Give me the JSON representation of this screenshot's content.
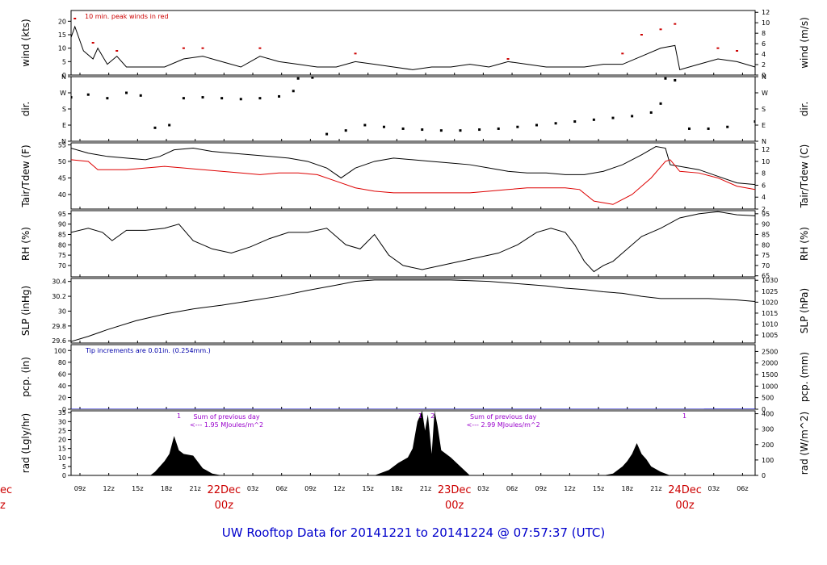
{
  "chart_data": {
    "type": "line",
    "title": "UW Rooftop Data for 20141221  to  20141224 @ 07:57:37  (UTC)",
    "x_axis": {
      "hour_ticks": [
        "09z",
        "12z",
        "15z",
        "18z",
        "21z",
        "03z",
        "06z",
        "09z",
        "12z",
        "15z",
        "18z",
        "21z",
        "03z",
        "06z",
        "09z",
        "12z",
        "15z",
        "18z",
        "21z",
        "03z",
        "06z"
      ],
      "hour_tick_index": [
        0,
        1,
        2,
        3,
        4,
        6,
        7,
        8,
        9,
        10,
        11,
        12,
        14,
        15,
        16,
        17,
        18,
        19,
        20,
        22,
        23
      ],
      "day_marks": [
        {
          "day": "22Dec",
          "zone": "00z",
          "index": 5
        },
        {
          "day": "23Dec",
          "zone": "00z",
          "index": 13
        },
        {
          "day": "24Dec",
          "zone": "00z",
          "index": 21
        }
      ],
      "left_cut_day": "ec",
      "left_cut_zone": "z",
      "range_hours": [
        8.2,
        79.9
      ]
    },
    "panels": [
      {
        "key": "wind",
        "ylabel": "wind (kts)",
        "ylabel_right": "wind (m/s)",
        "left_ticks": [
          0,
          5,
          10,
          15,
          20
        ],
        "right_ticks": [
          0,
          2,
          4,
          6,
          8,
          10,
          12
        ],
        "ylim": [
          0,
          24
        ],
        "annotation": "10 min. peak winds in red",
        "series": [
          {
            "color": "#000000",
            "x": [
              8.2,
              8.6,
              9.5,
              10.5,
              11.0,
              12.0,
              13.0,
              14.0,
              16.0,
              18.0,
              20.0,
              22.0,
              24.0,
              26.0,
              28.0,
              30.0,
              32.0,
              34.0,
              36.0,
              38.0,
              40.0,
              42.0,
              44.0,
              46.0,
              48.0,
              50.0,
              52.0,
              54.0,
              56.0,
              58.0,
              60.0,
              62.0,
              64.0,
              66.0,
              68.0,
              70.0,
              71.5,
              72.0,
              74.0,
              76.0,
              78.0,
              79.9
            ],
            "y": [
              14,
              18,
              9,
              6,
              10,
              4,
              7,
              3,
              3,
              3,
              6,
              7,
              5,
              3,
              7,
              5,
              4,
              3,
              3,
              5,
              4,
              3,
              2,
              3,
              3,
              4,
              3,
              5,
              4,
              3,
              3,
              3,
              4,
              4,
              7,
              10,
              11,
              2,
              4,
              6,
              5,
              3
            ]
          },
          {
            "color": "#cc0000",
            "x": [
              8.6,
              10.5,
              13.0,
              20.0,
              22.0,
              28.0,
              38.0,
              54.0,
              66.0,
              68.0,
              70.0,
              71.5,
              76.0,
              78.0
            ],
            "y": [
              21,
              12,
              9,
              10,
              10,
              10,
              8,
              6,
              8,
              15,
              17,
              19,
              10,
              9
            ]
          }
        ]
      },
      {
        "key": "dir",
        "ylabel": "dir.",
        "ylabel_right": "dir.",
        "left_ticks": [
          "N",
          "E",
          "S",
          "W",
          "N"
        ],
        "right_ticks": [
          "N",
          "E",
          "S",
          "W",
          "N"
        ],
        "ylim": [
          0,
          360
        ],
        "series": [
          {
            "color": "#000000",
            "x": [
              8.2,
              10.0,
              12.0,
              14.0,
              15.5,
              17.0,
              18.5,
              20.0,
              22.0,
              24.0,
              26.0,
              28.0,
              30.0,
              31.5,
              32.0,
              33.5,
              35.0,
              37.0,
              39.0,
              41.0,
              43.0,
              45.0,
              47.0,
              49.0,
              51.0,
              53.0,
              55.0,
              57.0,
              59.0,
              61.0,
              63.0,
              65.0,
              67.0,
              69.0,
              70.0,
              70.5,
              71.5,
              73.0,
              75.0,
              77.0,
              79.9
            ],
            "y": [
              245,
              260,
              240,
              270,
              255,
              75,
              90,
              240,
              245,
              240,
              235,
              240,
              250,
              280,
              350,
              355,
              40,
              60,
              90,
              80,
              70,
              65,
              60,
              60,
              65,
              70,
              80,
              90,
              100,
              110,
              120,
              130,
              140,
              160,
              210,
              350,
              340,
              70,
              70,
              80,
              110
            ]
          }
        ]
      },
      {
        "key": "temp",
        "ylabel": "Tair/Tdew (F)",
        "ylabel_right": "Tair/Tdew (C)",
        "left_ticks": [
          40,
          45,
          50,
          55
        ],
        "right_ticks": [
          2,
          4,
          6,
          8,
          10,
          12
        ],
        "ylim": [
          35.6,
          55.6
        ],
        "series": [
          {
            "name": "Tair",
            "color": "#000000",
            "x": [
              8.2,
              10.0,
              12.0,
              14.0,
              16.0,
              17.5,
              19.0,
              21.0,
              23.0,
              25.0,
              27.0,
              29.0,
              31.0,
              33.0,
              35.0,
              36.5,
              38.0,
              40.0,
              42.0,
              44.0,
              46.0,
              48.0,
              50.0,
              52.0,
              54.0,
              56.0,
              58.0,
              60.0,
              62.0,
              64.0,
              66.0,
              68.0,
              69.5,
              70.5,
              71.0,
              72.0,
              74.0,
              76.0,
              78.0,
              79.9
            ],
            "y": [
              54,
              52.5,
              51.5,
              51,
              50.5,
              51.5,
              53.5,
              54,
              53,
              52.5,
              52,
              51.5,
              51,
              50,
              48,
              45,
              48,
              50,
              51,
              50.5,
              50,
              49.5,
              49,
              48,
              47,
              46.5,
              46.5,
              46,
              46,
              47,
              49,
              52,
              54.5,
              54,
              49,
              48.5,
              47.5,
              45.5,
              43.5,
              43
            ]
          },
          {
            "name": "Tdew",
            "color": "#dd0000",
            "x": [
              8.2,
              10.0,
              11.0,
              12.0,
              14.0,
              16.0,
              18.0,
              20.0,
              22.0,
              24.0,
              26.0,
              28.0,
              30.0,
              32.0,
              34.0,
              36.0,
              38.0,
              40.0,
              42.0,
              44.0,
              46.0,
              48.0,
              50.0,
              52.0,
              54.0,
              56.0,
              58.0,
              60.0,
              61.5,
              63.0,
              65.0,
              67.0,
              69.0,
              70.5,
              71.0,
              72.0,
              74.0,
              76.0,
              78.0,
              79.9
            ],
            "y": [
              50.5,
              50,
              47.5,
              47.5,
              47.5,
              48,
              48.5,
              48,
              47.5,
              47,
              46.5,
              46,
              46.5,
              46.5,
              46,
              44,
              42,
              41,
              40.5,
              40.5,
              40.5,
              40.5,
              40.5,
              41,
              41.5,
              42,
              42,
              42,
              41.5,
              38,
              37,
              40,
              45,
              50,
              50.5,
              47,
              46.5,
              45,
              42.5,
              41.5
            ]
          }
        ]
      },
      {
        "key": "rh",
        "ylabel": "RH (%)",
        "ylabel_right": "RH (%)",
        "left_ticks": [
          70,
          75,
          80,
          85,
          90,
          95
        ],
        "right_ticks": [
          65,
          70,
          75,
          80,
          85,
          90,
          95
        ],
        "ylim": [
          64.5,
          96.5
        ],
        "series": [
          {
            "color": "#000000",
            "x": [
              8.2,
              10.0,
              11.5,
              12.5,
              14.0,
              16.0,
              18.0,
              19.5,
              21.0,
              23.0,
              25.0,
              27.0,
              29.0,
              31.0,
              33.0,
              35.0,
              37.0,
              38.5,
              40.0,
              41.5,
              43.0,
              45.0,
              47.0,
              49.0,
              51.0,
              53.0,
              55.0,
              57.0,
              58.5,
              60.0,
              61.0,
              62.0,
              63.0,
              64.0,
              65.0,
              66.0,
              68.0,
              70.0,
              72.0,
              74.0,
              76.0,
              78.0,
              79.9
            ],
            "y": [
              86,
              88,
              86,
              82,
              87,
              87,
              88,
              90,
              82,
              78,
              76,
              79,
              83,
              86,
              86,
              88,
              80,
              78,
              85,
              75,
              70,
              68,
              70,
              72,
              74,
              76,
              80,
              86,
              88,
              86,
              80,
              72,
              67,
              70,
              72,
              76,
              84,
              88,
              93,
              95,
              96,
              94.5,
              94
            ]
          }
        ]
      },
      {
        "key": "slp",
        "ylabel": "SLP (inHg)",
        "ylabel_right": "SLP (hPa)",
        "left_ticks": [
          29.6,
          29.8,
          30.0,
          30.2,
          30.4
        ],
        "right_ticks": [
          1005,
          1010,
          1015,
          1020,
          1025,
          1030
        ],
        "ylim": [
          29.57,
          30.44
        ],
        "series": [
          {
            "color": "#000000",
            "x": [
              8.2,
              10.0,
              12.0,
              15.0,
              18.0,
              21.0,
              24.0,
              27.0,
              30.0,
              33.0,
              36.0,
              38.0,
              40.0,
              42.0,
              44.0,
              46.0,
              48.0,
              50.0,
              52.0,
              54.0,
              56.0,
              58.0,
              60.0,
              62.0,
              64.0,
              66.0,
              68.0,
              70.0,
              72.0,
              75.0,
              78.0,
              79.9
            ],
            "y": [
              29.59,
              29.66,
              29.75,
              29.87,
              29.96,
              30.03,
              30.08,
              30.14,
              30.2,
              30.28,
              30.35,
              30.4,
              30.42,
              30.42,
              30.42,
              30.42,
              30.42,
              30.41,
              30.4,
              30.38,
              30.36,
              30.34,
              30.31,
              30.29,
              30.26,
              30.24,
              30.2,
              30.17,
              30.17,
              30.17,
              30.15,
              30.13
            ]
          }
        ]
      },
      {
        "key": "pcp",
        "ylabel": "pcp. (in)",
        "ylabel_right": "pcp. (mm)",
        "left_ticks": [
          0,
          20,
          40,
          60,
          80,
          100
        ],
        "right_ticks": [
          0,
          500,
          1000,
          1500,
          2000,
          2500
        ],
        "ylim": [
          0,
          110
        ],
        "annotation": "Tip increments are 0.01in. (0.254mm.)",
        "series": [
          {
            "color": "#0000cc",
            "x": [
              8.2,
              74.5,
              74.6,
              79.9
            ],
            "y": [
              0,
              0,
              0.1,
              0.1
            ]
          }
        ]
      },
      {
        "key": "rad",
        "ylabel": "rad (Lgly/hr)",
        "ylabel_right": "rad (W/m^2)",
        "left_ticks": [
          0,
          5,
          10,
          15,
          20,
          25,
          30,
          35
        ],
        "right_ticks": [
          0,
          100,
          200,
          300,
          400
        ],
        "ylim": [
          0,
          36
        ],
        "day_notes": [
          {
            "line1": "Sum of previous day",
            "line2": "<--- 1.95 MJoules/m^2",
            "x": 24.5
          },
          {
            "line1": "Sum of previous day",
            "line2": "<--- 2.99 MJoules/m^2",
            "x": 53.5
          }
        ],
        "markers": [
          {
            "label": "1",
            "x": 19.5
          },
          {
            "label": "1",
            "x": 44.8
          },
          {
            "label": "2",
            "x": 46.1
          },
          {
            "label": "1",
            "x": 72.5
          }
        ],
        "series": [
          {
            "color": "#000000",
            "x": [
              8.2,
              16.0,
              16.5,
              17.0,
              18.0,
              18.5,
              19.0,
              19.5,
              20.0,
              21.0,
              22.0,
              23.0,
              24.0,
              40.0,
              40.5,
              41.5,
              42.5,
              43.5,
              44.0,
              44.5,
              45.0,
              45.3,
              45.6,
              46.0,
              46.3,
              46.6,
              47.0,
              48.0,
              49.0,
              50.0,
              64.0,
              65.0,
              66.0,
              66.5,
              67.0,
              67.5,
              68.0,
              68.5,
              69.0,
              70.0,
              71.0,
              79.9
            ],
            "y": [
              0,
              0,
              0,
              2,
              8,
              12,
              22,
              14,
              12,
              11,
              4,
              1,
              0,
              0,
              1,
              3,
              7,
              10,
              15,
              30,
              36,
              25,
              34,
              12,
              36,
              28,
              14,
              10,
              5,
              0,
              0,
              1,
              5,
              8,
              12,
              18,
              12,
              9,
              5,
              2,
              0,
              0
            ]
          }
        ]
      }
    ]
  }
}
